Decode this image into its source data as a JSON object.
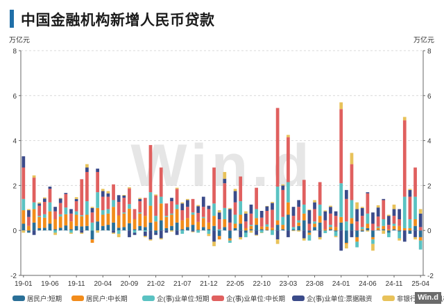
{
  "chart_data": {
    "type": "bar",
    "stacked": true,
    "title": "中国金融机构新增人民币贷款",
    "unit_left": "万亿元",
    "unit_right": "万亿元",
    "ylim": [
      -2,
      8
    ],
    "yticks": [
      -2,
      0,
      2,
      4,
      6,
      8
    ],
    "grid": true,
    "watermark": "Win.d",
    "brand": "Win.d",
    "legend_position": "bottom",
    "xtick_labels": [
      "19-01",
      "19-06",
      "19-11",
      "20-04",
      "20-09",
      "21-02",
      "21-07",
      "21-12",
      "22-05",
      "22-10",
      "23-03",
      "23-08",
      "24-01",
      "24-06",
      "24-11",
      "25-04"
    ],
    "categories": [
      "19-01",
      "19-02",
      "19-03",
      "19-04",
      "19-05",
      "19-06",
      "19-07",
      "19-08",
      "19-09",
      "19-10",
      "19-11",
      "19-12",
      "20-01",
      "20-02",
      "20-03",
      "20-04",
      "20-05",
      "20-06",
      "20-07",
      "20-08",
      "20-09",
      "20-10",
      "20-11",
      "20-12",
      "21-01",
      "21-02",
      "21-03",
      "21-04",
      "21-05",
      "21-06",
      "21-07",
      "21-08",
      "21-09",
      "21-10",
      "21-11",
      "21-12",
      "22-01",
      "22-02",
      "22-03",
      "22-04",
      "22-05",
      "22-06",
      "22-07",
      "22-08",
      "22-09",
      "22-10",
      "22-11",
      "22-12",
      "23-01",
      "23-02",
      "23-03",
      "23-04",
      "23-05",
      "23-06",
      "23-07",
      "23-08",
      "23-09",
      "23-10",
      "23-11",
      "23-12",
      "24-01",
      "24-02",
      "24-03",
      "24-04",
      "24-05",
      "24-06",
      "24-07",
      "24-08",
      "24-09",
      "24-10",
      "24-11",
      "24-12",
      "25-01",
      "25-02",
      "25-03",
      "25-04"
    ],
    "series": [
      {
        "name": "居民户:短期",
        "color": "#2a6f97",
        "values": [
          0.3,
          -0.1,
          0.35,
          0.1,
          0.12,
          0.3,
          0.05,
          0.12,
          0.22,
          0.05,
          0.2,
          0.18,
          0.2,
          -0.4,
          0.4,
          0.2,
          0.25,
          0.35,
          0.12,
          0.15,
          0.32,
          0.05,
          0.2,
          0.15,
          0.35,
          -0.1,
          0.45,
          0.1,
          0.2,
          0.35,
          0.05,
          0.15,
          0.25,
          0.03,
          0.15,
          0.05,
          0.2,
          -0.25,
          0.15,
          -0.35,
          0.1,
          0.3,
          -0.1,
          0.05,
          0.25,
          0.05,
          0.02,
          0.02,
          0.25,
          0.05,
          0.7,
          0.05,
          0.2,
          0.45,
          -0.1,
          0.15,
          0.35,
          -0.02,
          0.05,
          -0.05,
          0.35,
          -0.55,
          0.3,
          -0.3,
          -0.05,
          0.1,
          -0.3,
          0.02,
          0.05,
          -0.1,
          0.05,
          -0.05,
          0.0,
          -0.15,
          0.2,
          -0.3
        ]
      },
      {
        "name": "居民户:中长期",
        "color": "#f28c1b",
        "values": [
          0.6,
          0.2,
          0.6,
          0.5,
          0.45,
          0.55,
          0.45,
          0.5,
          0.5,
          0.35,
          0.5,
          0.45,
          0.5,
          -0.15,
          0.6,
          0.5,
          0.5,
          0.7,
          0.55,
          0.6,
          0.65,
          0.45,
          0.55,
          0.5,
          0.75,
          0.4,
          0.75,
          0.5,
          0.5,
          0.6,
          0.4,
          0.4,
          0.45,
          0.35,
          0.4,
          0.3,
          0.45,
          -0.15,
          0.35,
          -0.1,
          0.2,
          0.4,
          0.1,
          0.15,
          0.3,
          0.12,
          0.15,
          0.1,
          0.2,
          0.2,
          0.55,
          0.0,
          0.15,
          0.3,
          -0.1,
          0.15,
          0.3,
          0.05,
          0.1,
          0.15,
          0.25,
          -0.05,
          0.25,
          -0.2,
          0.05,
          0.2,
          -0.1,
          0.1,
          0.15,
          0.05,
          0.15,
          0.2,
          0.1,
          0.1,
          0.3,
          -0.15
        ]
      },
      {
        "name": "企(事)业单位:短期",
        "color": "#5ac2c2",
        "values": [
          0.5,
          0.0,
          0.3,
          0.05,
          0.15,
          0.4,
          -0.1,
          0.1,
          0.3,
          -0.1,
          0.15,
          0.05,
          0.6,
          0.35,
          0.7,
          0.2,
          0.2,
          0.3,
          -0.15,
          0.05,
          0.2,
          -0.1,
          0.05,
          -0.05,
          0.6,
          0.25,
          0.3,
          0.05,
          0.05,
          0.2,
          -0.15,
          0.0,
          0.1,
          -0.1,
          0.05,
          -0.15,
          0.55,
          0.05,
          0.5,
          -0.1,
          0.4,
          0.6,
          -0.2,
          0.05,
          0.4,
          -0.1,
          0.1,
          -0.2,
          1.5,
          0.35,
          0.9,
          0.1,
          0.1,
          0.4,
          -0.25,
          0.1,
          0.5,
          -0.1,
          0.1,
          -0.2,
          1.5,
          0.4,
          0.8,
          -0.25,
          0.1,
          0.45,
          -0.2,
          0.05,
          0.3,
          -0.2,
          0.1,
          -0.3,
          1.4,
          0.4,
          1.0,
          -0.4
        ]
      },
      {
        "name": "企(事)业单位:中长期",
        "color": "#e0605f",
        "values": [
          1.4,
          0.4,
          1.1,
          0.45,
          0.55,
          0.6,
          0.35,
          0.5,
          0.6,
          0.35,
          0.45,
          1.6,
          1.3,
          0.45,
          0.9,
          0.6,
          0.55,
          0.7,
          0.6,
          0.65,
          0.7,
          0.45,
          0.5,
          0.8,
          2.1,
          0.9,
          1.3,
          0.55,
          0.55,
          0.7,
          0.45,
          0.5,
          0.6,
          0.4,
          0.45,
          0.6,
          1.6,
          0.45,
          1.1,
          0.35,
          0.55,
          1.1,
          0.3,
          0.5,
          0.95,
          0.4,
          0.6,
          0.8,
          3.5,
          1.2,
          2.0,
          0.5,
          0.6,
          1.1,
          0.3,
          0.55,
          1.0,
          0.4,
          0.5,
          0.5,
          3.3,
          1.0,
          1.6,
          0.4,
          0.5,
          0.9,
          0.3,
          0.45,
          0.85,
          0.2,
          0.35,
          0.3,
          3.4,
          1.0,
          1.3,
          0.15
        ]
      },
      {
        "name": "企(事)业单位:票据融资",
        "color": "#3b4b8a",
        "values": [
          0.5,
          0.3,
          -0.2,
          0.1,
          0.15,
          0.1,
          0.2,
          0.2,
          0.05,
          0.2,
          0.1,
          -0.1,
          0.2,
          0.2,
          0.15,
          0.25,
          0.15,
          -0.1,
          0.3,
          0.1,
          -0.3,
          -0.1,
          0.1,
          -0.2,
          -0.4,
          -0.1,
          -0.35,
          -0.1,
          0.15,
          -0.2,
          0.3,
          0.3,
          -0.05,
          0.3,
          0.45,
          0.15,
          -0.5,
          0.3,
          0.2,
          0.6,
          0.5,
          -0.3,
          0.35,
          0.4,
          -0.2,
          0.3,
          0.2,
          0.3,
          -0.4,
          0.2,
          -0.3,
          0.4,
          0.3,
          -0.35,
          0.6,
          0.3,
          -0.3,
          0.4,
          0.3,
          0.2,
          -0.9,
          0.4,
          -0.3,
          0.55,
          0.35,
          0.05,
          0.5,
          0.4,
          0.05,
          0.4,
          0.3,
          0.45,
          -0.5,
          0.3,
          -0.3,
          0.6
        ]
      },
      {
        "name": "非银行业金融机构",
        "color": "#e8c25a",
        "values": [
          -0.1,
          0.05,
          0.1,
          0.05,
          0.05,
          0.0,
          -0.1,
          0.03,
          0.0,
          -0.05,
          0.08,
          -0.05,
          0.15,
          0.05,
          -0.1,
          0.1,
          0.1,
          -0.05,
          -0.15,
          0.03,
          0.05,
          0.0,
          0.05,
          -0.05,
          -0.05,
          0.05,
          -0.05,
          0.0,
          -0.05,
          0.05,
          0.05,
          0.05,
          -0.03,
          0.05,
          0.0,
          -0.1,
          -0.2,
          0.1,
          0.3,
          0.05,
          0.1,
          -0.1,
          0.1,
          -0.1,
          -0.03,
          -0.02,
          0.02,
          0.05,
          -0.2,
          0.05,
          0.1,
          -0.03,
          -0.05,
          -0.1,
          0.03,
          0.1,
          -0.1,
          0.04,
          0.05,
          -0.05,
          0.3,
          -0.2,
          0.5,
          0.3,
          0.05,
          -0.05,
          -0.3,
          0.1,
          -0.15,
          0.05,
          0.2,
          -0.1,
          0.15,
          0.05,
          -0.1,
          0.2
        ]
      }
    ]
  }
}
